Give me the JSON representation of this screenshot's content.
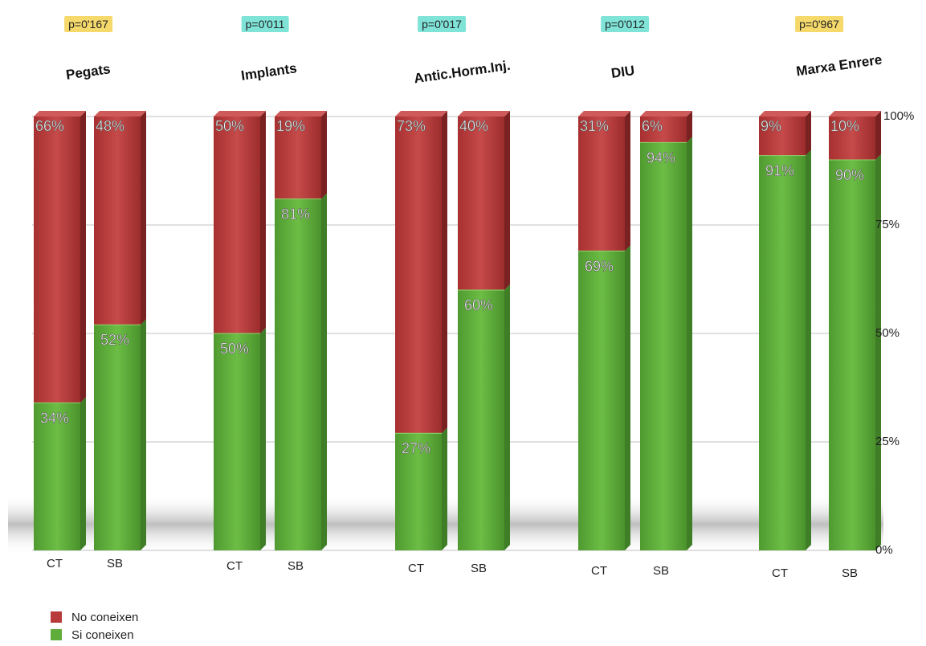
{
  "chart_data": {
    "type": "bar",
    "stacked": true,
    "percent_stacked": true,
    "groups": [
      {
        "title": "Pegats",
        "p_value": "p=0'167",
        "highlight": "warn",
        "bars": [
          {
            "label": "CT",
            "no": 66,
            "si": 34,
            "no_label": "66%",
            "si_label": "34%"
          },
          {
            "label": "SB",
            "no": 48,
            "si": 52,
            "no_label": "48%",
            "si_label": "52%"
          }
        ]
      },
      {
        "title": "Implants",
        "p_value": "p=0'011",
        "highlight": "ok",
        "bars": [
          {
            "label": "CT",
            "no": 50,
            "si": 50,
            "no_label": "50%",
            "si_label": "50%"
          },
          {
            "label": "SB",
            "no": 19,
            "si": 81,
            "no_label": "19%",
            "si_label": "81%"
          }
        ]
      },
      {
        "title": "Antic.Horm.Inj.",
        "p_value": "p=0'017",
        "highlight": "ok",
        "bars": [
          {
            "label": "CT",
            "no": 73,
            "si": 27,
            "no_label": "73%",
            "si_label": "27%"
          },
          {
            "label": "SB",
            "no": 40,
            "si": 60,
            "no_label": "40%",
            "si_label": "60%"
          }
        ]
      },
      {
        "title": "DIU",
        "p_value": "p=0'012",
        "highlight": "ok",
        "bars": [
          {
            "label": "CT",
            "no": 31,
            "si": 69,
            "no_label": "31%",
            "si_label": "69%"
          },
          {
            "label": "SB",
            "no": 6,
            "si": 94,
            "no_label": "6%",
            "si_label": "94%"
          }
        ]
      },
      {
        "title": "Marxa Enrere",
        "p_value": "p=0'967",
        "highlight": "warn",
        "bars": [
          {
            "label": "CT",
            "no": 9,
            "si": 91,
            "no_label": "9%",
            "si_label": "91%"
          },
          {
            "label": "SB",
            "no": 10,
            "si": 90,
            "no_label": "10%",
            "si_label": "90%"
          }
        ]
      }
    ],
    "y_ticks": [
      "0%",
      "25%",
      "50%",
      "75%",
      "100%"
    ],
    "ylim": [
      0,
      100
    ],
    "grid": true,
    "legend_position": "bottom-left",
    "series": [
      {
        "name": "No coneixen",
        "color": "#b83a3a"
      },
      {
        "name": "Si coneixen",
        "color": "#5fae3c"
      }
    ]
  }
}
